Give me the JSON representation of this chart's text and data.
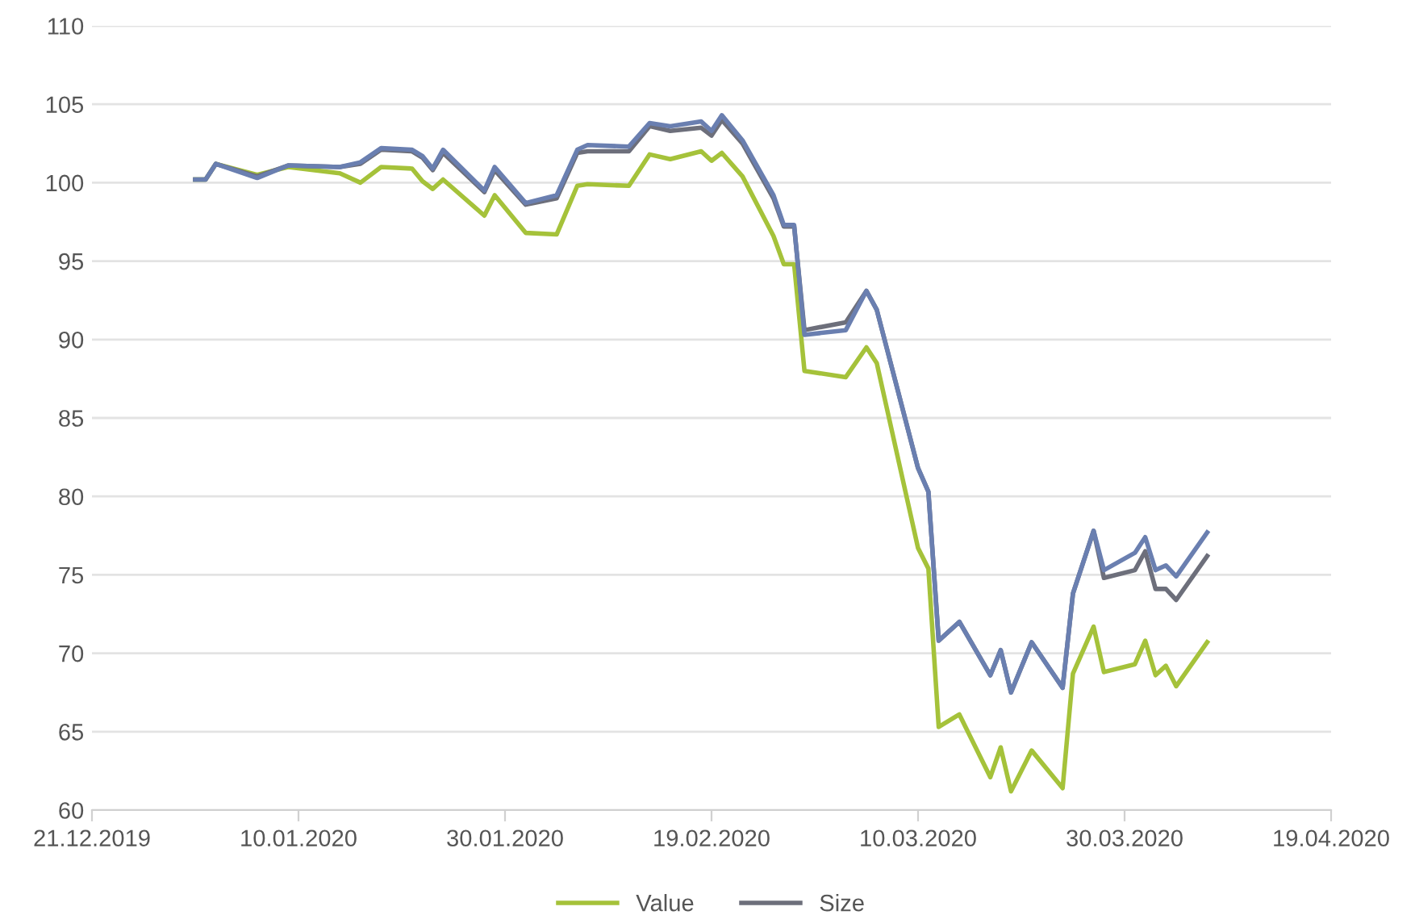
{
  "chart_data": {
    "type": "line",
    "x": [
      "2019-12-31",
      "2020-01-01",
      "2020-01-02",
      "2020-01-06",
      "2020-01-09",
      "2020-01-14",
      "2020-01-16",
      "2020-01-18",
      "2020-01-21",
      "2020-01-22",
      "2020-01-23",
      "2020-01-24",
      "2020-01-28",
      "2020-01-29",
      "2020-02-01",
      "2020-02-04",
      "2020-02-06",
      "2020-02-07",
      "2020-02-11",
      "2020-02-13",
      "2020-02-15",
      "2020-02-18",
      "2020-02-19",
      "2020-02-20",
      "2020-02-22",
      "2020-02-25",
      "2020-02-26",
      "2020-02-27",
      "2020-02-28",
      "2020-03-03",
      "2020-03-05",
      "2020-03-06",
      "2020-03-10",
      "2020-03-11",
      "2020-03-12",
      "2020-03-14",
      "2020-03-17",
      "2020-03-18",
      "2020-03-19",
      "2020-03-21",
      "2020-03-24",
      "2020-03-25",
      "2020-03-27",
      "2020-03-28",
      "2020-03-31",
      "2020-04-01",
      "2020-04-02",
      "2020-04-03",
      "2020-04-04",
      "2020-04-07"
    ],
    "series": [
      {
        "name": "Value",
        "color": "#a5c23a",
        "values": [
          100.2,
          100.2,
          101.2,
          100.5,
          101.0,
          100.6,
          100.0,
          101.0,
          100.9,
          100.1,
          99.6,
          100.2,
          97.9,
          99.2,
          96.8,
          96.7,
          99.8,
          99.9,
          99.8,
          101.8,
          101.5,
          102.0,
          101.4,
          101.9,
          100.4,
          96.6,
          94.8,
          94.8,
          88.0,
          87.6,
          89.5,
          88.5,
          76.7,
          75.4,
          65.3,
          66.1,
          62.1,
          64.0,
          61.2,
          63.8,
          61.4,
          68.7,
          71.7,
          68.8,
          69.3,
          70.8,
          68.6,
          69.2,
          67.9,
          70.7
        ]
      },
      {
        "name": "Size",
        "color": "#6d6f7b",
        "values": [
          100.2,
          100.2,
          101.2,
          100.4,
          101.1,
          101.0,
          101.2,
          102.1,
          102.0,
          101.6,
          100.8,
          101.9,
          99.4,
          100.8,
          98.6,
          99.0,
          101.9,
          102.0,
          102.0,
          103.6,
          103.3,
          103.5,
          103.0,
          104.0,
          102.5,
          99.0,
          97.2,
          97.2,
          90.6,
          91.1,
          93.1,
          91.9,
          81.8,
          80.3,
          70.8,
          72.0,
          68.6,
          70.2,
          67.5,
          70.7,
          67.8,
          73.8,
          77.8,
          74.8,
          75.3,
          76.5,
          74.1,
          74.1,
          73.4,
          76.2
        ]
      },
      {
        "color": "#6a7fb0",
        "values": [
          100.2,
          100.2,
          101.2,
          100.3,
          101.1,
          101.0,
          101.3,
          102.2,
          102.1,
          101.7,
          100.9,
          102.1,
          99.5,
          101.0,
          98.7,
          99.2,
          102.1,
          102.4,
          102.3,
          103.8,
          103.6,
          103.9,
          103.3,
          104.3,
          102.7,
          99.2,
          97.3,
          97.3,
          90.3,
          90.6,
          93.1,
          91.9,
          81.8,
          80.3,
          70.8,
          72.0,
          68.6,
          70.2,
          67.5,
          70.7,
          67.8,
          73.8,
          77.8,
          75.3,
          76.4,
          77.4,
          75.3,
          75.6,
          74.9,
          77.7
        ]
      }
    ],
    "xlim": [
      "2019-12-21",
      "2020-04-19"
    ],
    "xticks": [
      {
        "value": "2019-12-21",
        "label": "21.12.2019"
      },
      {
        "value": "2020-01-10",
        "label": "10.01.2020"
      },
      {
        "value": "2020-01-30",
        "label": "30.01.2020"
      },
      {
        "value": "2020-02-19",
        "label": "19.02.2020"
      },
      {
        "value": "2020-03-10",
        "label": "10.03.2020"
      },
      {
        "value": "2020-03-30",
        "label": "30.03.2020"
      },
      {
        "value": "2020-04-19",
        "label": "19.04.2020"
      }
    ],
    "ylim": [
      60,
      110
    ],
    "yticks": [
      60,
      65,
      70,
      75,
      80,
      85,
      90,
      95,
      100,
      105,
      110
    ],
    "grid": "y",
    "legend": "bottom",
    "marker": "none",
    "line_style": "solid"
  }
}
